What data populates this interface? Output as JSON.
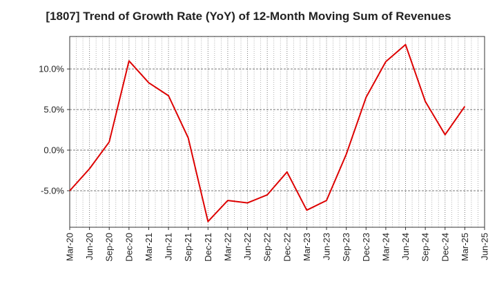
{
  "chart_data": {
    "type": "line",
    "title": "[1807]  Trend of Growth Rate (YoY) of 12-Month Moving Sum of Revenues",
    "xlabel": "",
    "ylabel": "",
    "x": [
      "Mar-20",
      "Jun-20",
      "Sep-20",
      "Dec-20",
      "Mar-21",
      "Jun-21",
      "Sep-21",
      "Dec-21",
      "Mar-22",
      "Jun-22",
      "Sep-22",
      "Dec-22",
      "Mar-23",
      "Jun-23",
      "Sep-23",
      "Dec-23",
      "Mar-24",
      "Jun-24",
      "Sep-24",
      "Dec-24",
      "Mar-25"
    ],
    "x_ticks": [
      "Mar-20",
      "Jun-20",
      "Sep-20",
      "Dec-20",
      "Mar-21",
      "Jun-21",
      "Sep-21",
      "Dec-21",
      "Mar-22",
      "Jun-22",
      "Sep-22",
      "Dec-22",
      "Mar-23",
      "Jun-23",
      "Sep-23",
      "Dec-23",
      "Mar-24",
      "Jun-24",
      "Sep-24",
      "Dec-24",
      "Mar-25",
      "Jun-25"
    ],
    "series": [
      {
        "name": "",
        "color": "#dd0000",
        "values": [
          -5.0,
          -2.3,
          1.0,
          11.0,
          8.3,
          6.7,
          1.5,
          -8.8,
          -6.2,
          -6.5,
          -5.5,
          -2.7,
          -7.4,
          -6.2,
          -0.5,
          6.5,
          10.9,
          13.0,
          6.0,
          1.9,
          5.4
        ]
      }
    ],
    "y_ticks": [
      -5,
      0,
      5,
      10
    ],
    "y_tick_labels": [
      "-5.0%",
      "0.0%",
      "5.0%",
      "10.0%"
    ],
    "ylim": [
      -9.5,
      14.0
    ],
    "grid": true,
    "legend": "none"
  }
}
